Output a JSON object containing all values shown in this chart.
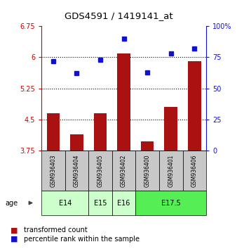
{
  "title": "GDS4591 / 1419141_at",
  "samples": [
    "GSM936403",
    "GSM936404",
    "GSM936405",
    "GSM936402",
    "GSM936400",
    "GSM936401",
    "GSM936406"
  ],
  "bar_values": [
    4.65,
    4.15,
    4.65,
    6.1,
    3.97,
    4.8,
    5.9
  ],
  "dot_values": [
    72,
    62,
    73,
    90,
    63,
    78,
    82
  ],
  "ylim_left": [
    3.75,
    6.75
  ],
  "ylim_right": [
    0,
    100
  ],
  "yticks_left": [
    3.75,
    4.5,
    5.25,
    6.0,
    6.75
  ],
  "yticks_right": [
    0,
    25,
    50,
    75,
    100
  ],
  "ytick_labels_left": [
    "3.75",
    "4.5",
    "5.25",
    "6",
    "6.75"
  ],
  "ytick_labels_right": [
    "0",
    "25",
    "50",
    "75",
    "100%"
  ],
  "hlines": [
    4.5,
    5.25,
    6.0
  ],
  "bar_color": "#aa1111",
  "dot_color": "#1111cc",
  "age_groups": [
    {
      "label": "E14",
      "indices": [
        0,
        1
      ],
      "color": "#ccffcc"
    },
    {
      "label": "E15",
      "indices": [
        2
      ],
      "color": "#ccffcc"
    },
    {
      "label": "E16",
      "indices": [
        3
      ],
      "color": "#ccffcc"
    },
    {
      "label": "E17.5",
      "indices": [
        4,
        5,
        6
      ],
      "color": "#55ee55"
    }
  ],
  "legend_bar_label": "transformed count",
  "legend_dot_label": "percentile rank within the sample",
  "age_label": "age",
  "cell_color": "#c8c8c8",
  "background_color": "#ffffff"
}
